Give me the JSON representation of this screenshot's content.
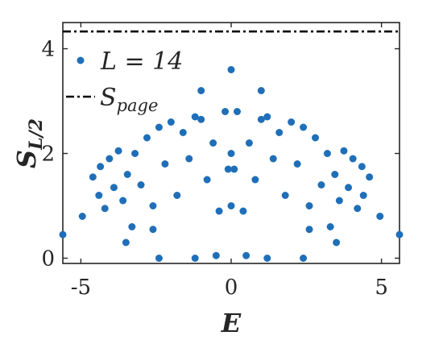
{
  "chart_data": {
    "type": "scatter",
    "title": "",
    "xlabel": "E",
    "ylabel": "S",
    "ylabel_subscript": "L/2",
    "xlim": [
      -5.6,
      5.6
    ],
    "ylim": [
      -0.1,
      4.5
    ],
    "xticks": [
      -5,
      0,
      5
    ],
    "xtick_labels": [
      "-5",
      "0",
      "5"
    ],
    "yticks": [
      0,
      2,
      4
    ],
    "ytick_labels": [
      "0",
      "2",
      "4"
    ],
    "grid": false,
    "legend_position": "top-left",
    "marker_color": "#1f6fb8",
    "line_color": "#000000",
    "legend": {
      "scatter_label": "L = 14",
      "line_label_main": "S",
      "line_label_sub": "page"
    },
    "series": [
      {
        "name": "L = 14",
        "kind": "scatter",
        "x": [
          -5.6,
          5.6,
          -4.95,
          4.95,
          -4.6,
          4.6,
          -4.4,
          4.4,
          -4.35,
          4.35,
          -4.2,
          4.2,
          -4.05,
          4.05,
          -3.9,
          3.9,
          -3.75,
          3.75,
          -3.6,
          3.6,
          -3.45,
          3.45,
          -3.3,
          3.3,
          -3.2,
          3.2,
          -3.0,
          3.0,
          -2.8,
          2.8,
          -2.6,
          2.6,
          -2.4,
          2.4,
          -2.2,
          2.2,
          -2.0,
          2.0,
          -1.8,
          1.8,
          -1.6,
          1.6,
          -1.4,
          1.4,
          -1.2,
          1.2,
          -1.0,
          1.0,
          -0.8,
          0.8,
          -0.6,
          0.6,
          -0.4,
          0.4,
          -0.2,
          0.2,
          0.0,
          0.0,
          -2.4,
          2.4,
          -1.2,
          1.2,
          -0.5,
          0.5,
          0.0,
          -3.5,
          3.5,
          -1.0,
          1.0,
          -2.6,
          2.6,
          -0.1,
          0.1
        ],
        "y": [
          0.45,
          0.45,
          0.8,
          0.8,
          1.55,
          1.55,
          1.2,
          1.2,
          1.75,
          1.75,
          0.95,
          0.95,
          1.9,
          1.9,
          1.35,
          1.35,
          2.05,
          2.05,
          1.1,
          1.1,
          1.6,
          1.6,
          0.6,
          0.6,
          2.0,
          2.0,
          1.4,
          1.4,
          2.3,
          2.3,
          1.0,
          1.0,
          2.5,
          2.5,
          1.8,
          1.8,
          2.6,
          2.6,
          1.2,
          1.2,
          2.4,
          2.4,
          1.9,
          1.9,
          2.7,
          2.7,
          3.2,
          3.2,
          1.5,
          1.5,
          2.2,
          2.2,
          0.9,
          0.9,
          2.8,
          2.8,
          3.6,
          2.0,
          0.0,
          0.0,
          0.0,
          0.0,
          0.05,
          0.05,
          1.0,
          0.3,
          0.3,
          2.65,
          2.65,
          0.55,
          0.55,
          1.7,
          1.7
        ]
      },
      {
        "name": "S_page",
        "kind": "line",
        "y_value": 4.33
      }
    ]
  }
}
